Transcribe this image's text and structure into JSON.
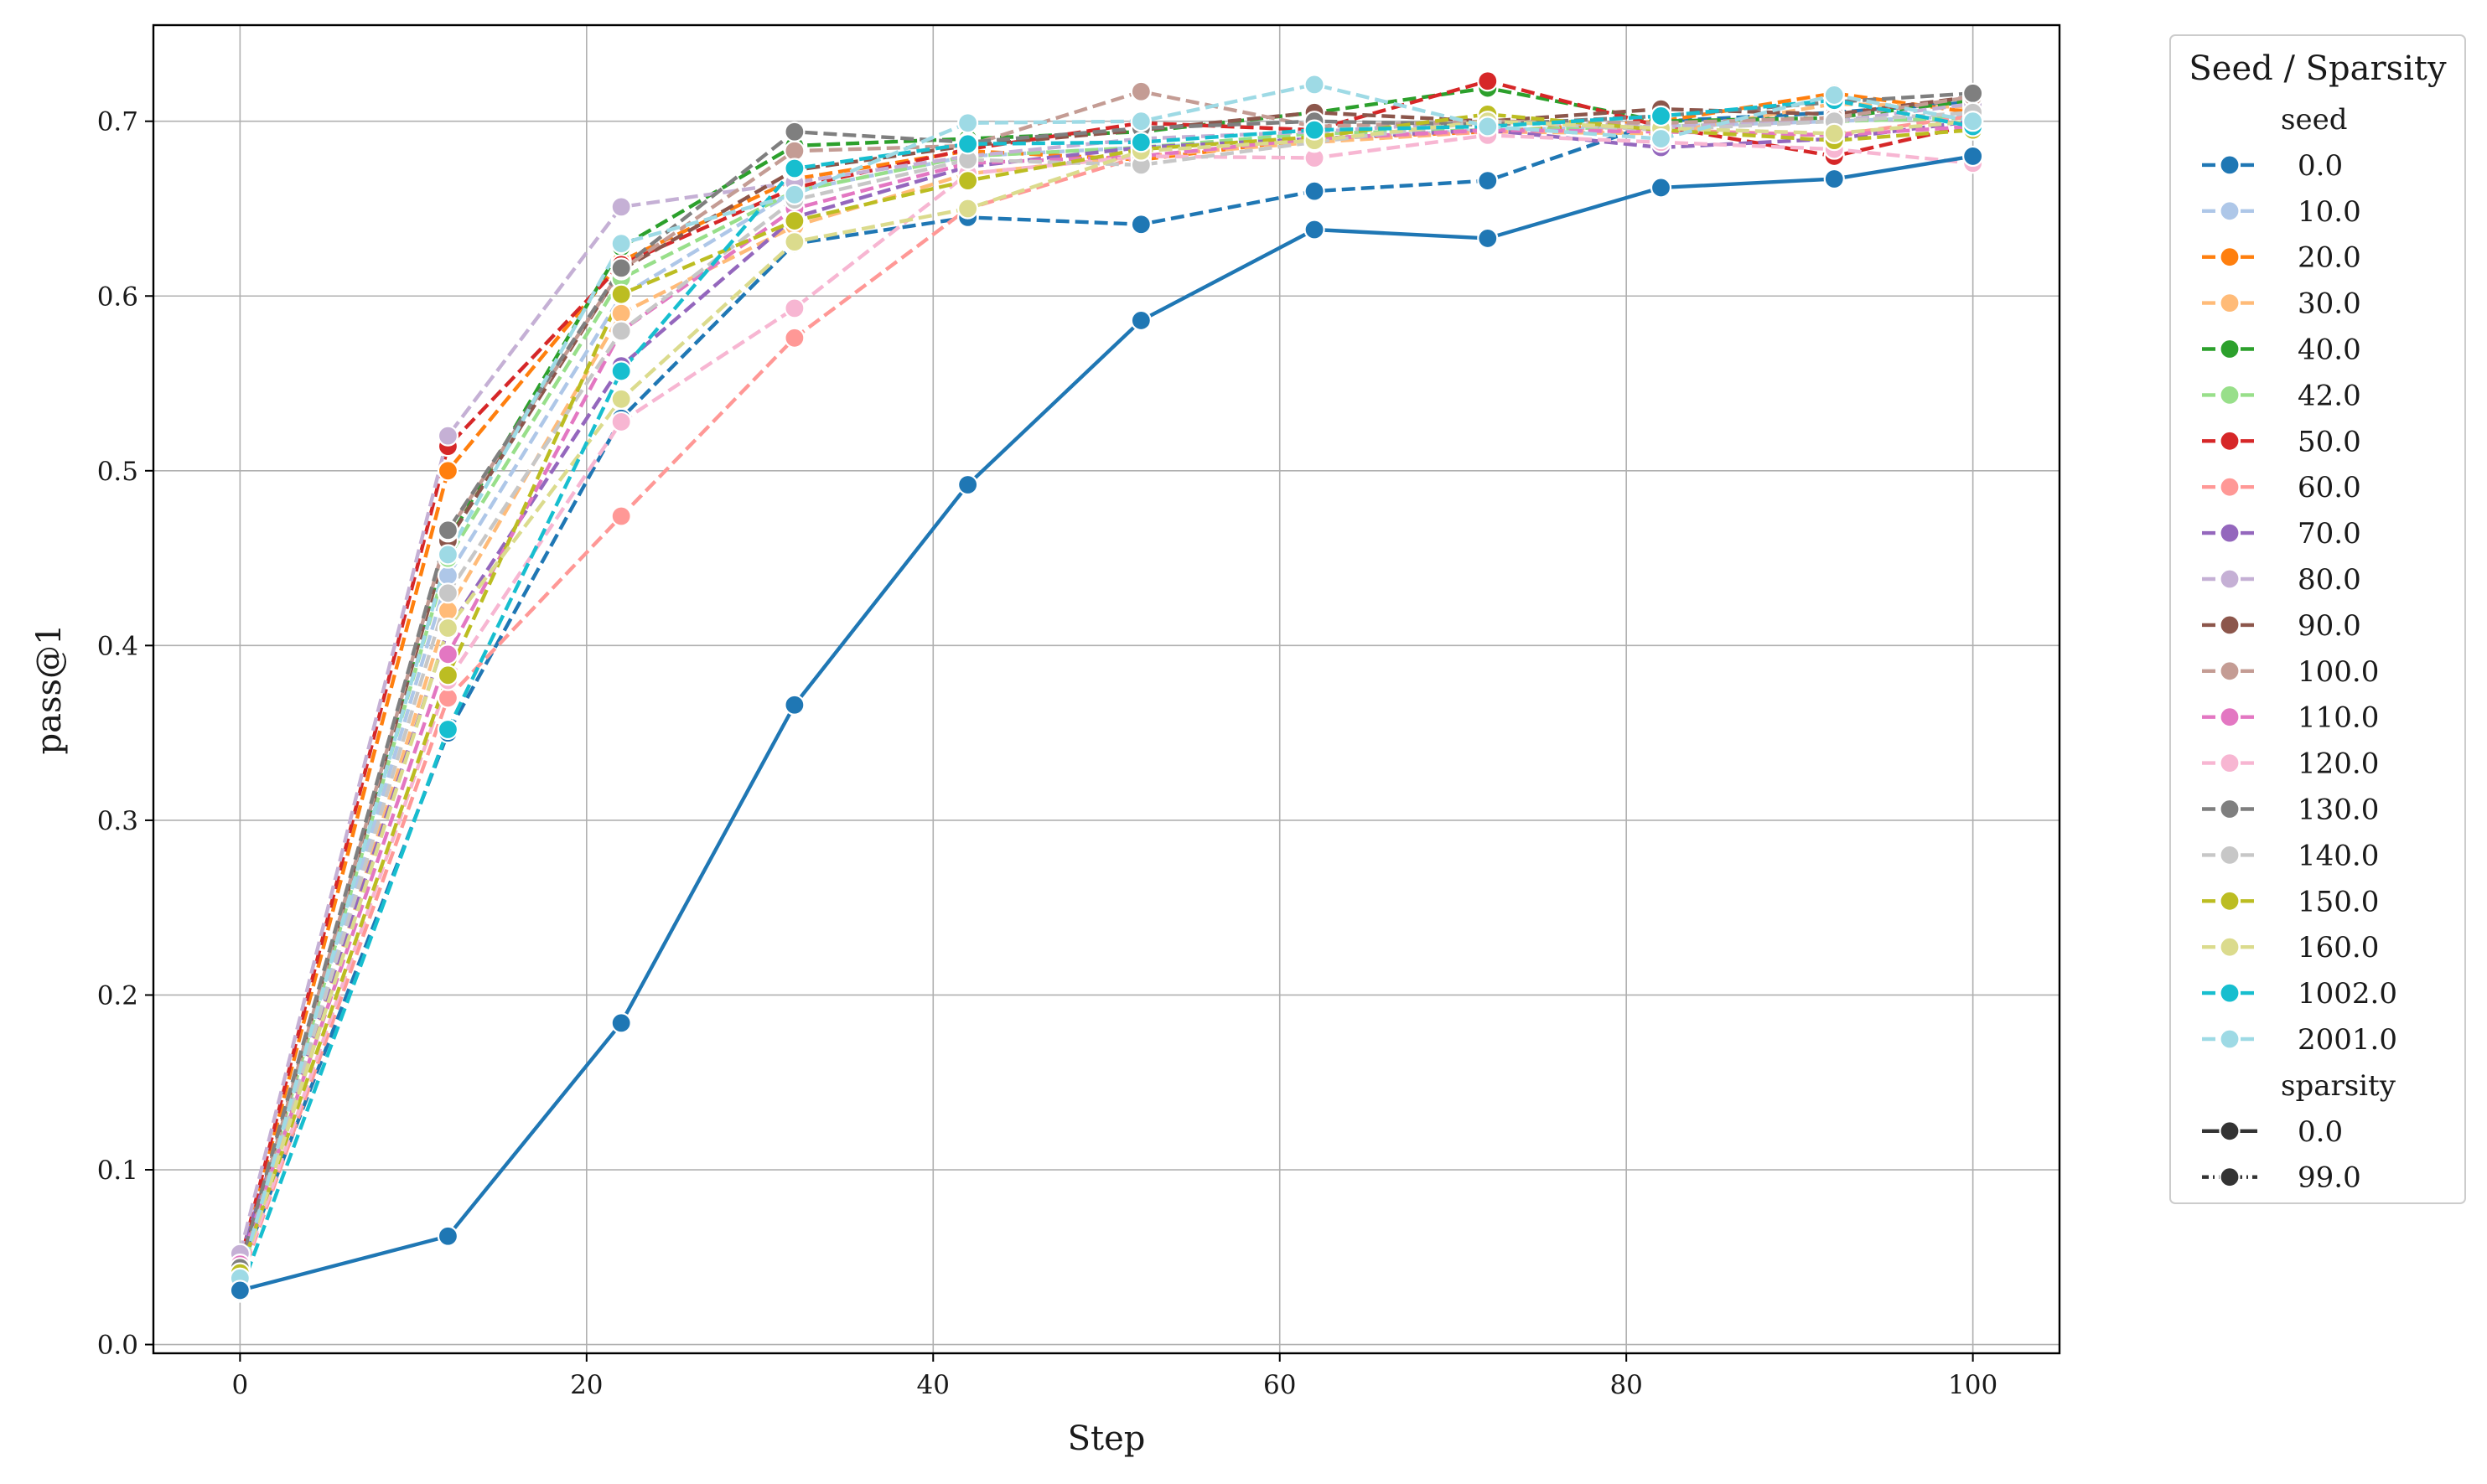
{
  "chart_data": {
    "type": "line",
    "xlabel": "Step",
    "ylabel": "pass@1",
    "xlim": [
      -5,
      105
    ],
    "ylim": [
      -0.005,
      0.755
    ],
    "xticks": [
      "0",
      "20",
      "40",
      "60",
      "80",
      "100"
    ],
    "yticks": [
      "0.0",
      "0.1",
      "0.2",
      "0.3",
      "0.4",
      "0.5",
      "0.6",
      "0.7"
    ],
    "grid": true,
    "legend": {
      "title": "Seed / Sparsity",
      "placement": "outside-right",
      "seed_header": "seed",
      "sparsity_header": "sparsity",
      "seeds": [
        "0.0",
        "10.0",
        "20.0",
        "30.0",
        "40.0",
        "42.0",
        "50.0",
        "60.0",
        "70.0",
        "80.0",
        "90.0",
        "100.0",
        "110.0",
        "120.0",
        "130.0",
        "140.0",
        "150.0",
        "160.0",
        "1002.0",
        "2001.0"
      ],
      "sparsities": [
        "0.0",
        "99.0"
      ]
    },
    "seed_colors": [
      "#1f77b4",
      "#aec7e8",
      "#ff7f0e",
      "#ffbb78",
      "#2ca02c",
      "#98df8a",
      "#d62728",
      "#ff9896",
      "#9467bd",
      "#c5b0d5",
      "#8c564b",
      "#c49c94",
      "#e377c2",
      "#f7b6d2",
      "#7f7f7f",
      "#c7c7c7",
      "#bcbd22",
      "#dbdb8d",
      "#17becf",
      "#9edae5"
    ],
    "x": [
      0,
      12,
      22,
      32,
      42,
      52,
      62,
      72,
      82,
      92,
      100
    ],
    "series": [
      {
        "seed": "0.0",
        "sparsity": "99.0",
        "values": [
          0.042,
          0.35,
          0.53,
          0.63,
          0.645,
          0.641,
          0.66,
          0.666,
          0.7,
          0.705,
          0.711
        ]
      },
      {
        "seed": "10.0",
        "sparsity": "99.0",
        "values": [
          0.039,
          0.44,
          0.6,
          0.66,
          0.68,
          0.685,
          0.69,
          0.695,
          0.697,
          0.7,
          0.703
        ]
      },
      {
        "seed": "20.0",
        "sparsity": "99.0",
        "values": [
          0.045,
          0.5,
          0.62,
          0.667,
          0.683,
          0.678,
          0.69,
          0.694,
          0.7,
          0.716,
          0.705
        ]
      },
      {
        "seed": "30.0",
        "sparsity": "99.0",
        "values": [
          0.038,
          0.42,
          0.59,
          0.64,
          0.67,
          0.68,
          0.688,
          0.694,
          0.693,
          0.71,
          0.708
        ]
      },
      {
        "seed": "40.0",
        "sparsity": "99.0",
        "values": [
          0.044,
          0.46,
          0.628,
          0.686,
          0.69,
          0.694,
          0.705,
          0.719,
          0.7,
          0.702,
          0.712
        ]
      },
      {
        "seed": "42.0",
        "sparsity": "99.0",
        "values": [
          0.041,
          0.45,
          0.61,
          0.66,
          0.68,
          0.685,
          0.693,
          0.695,
          0.697,
          0.7,
          0.702
        ]
      },
      {
        "seed": "50.0",
        "sparsity": "99.0",
        "values": [
          0.047,
          0.514,
          0.618,
          0.662,
          0.684,
          0.699,
          0.695,
          0.723,
          0.697,
          0.68,
          0.698
        ]
      },
      {
        "seed": "60.0",
        "sparsity": "99.0",
        "values": [
          0.036,
          0.37,
          0.474,
          0.576,
          0.65,
          0.68,
          0.69,
          0.694,
          0.695,
          0.692,
          0.703
        ]
      },
      {
        "seed": "70.0",
        "sparsity": "99.0",
        "values": [
          0.05,
          0.409,
          0.56,
          0.645,
          0.674,
          0.685,
          0.69,
          0.695,
          0.685,
          0.69,
          0.7
        ]
      },
      {
        "seed": "80.0",
        "sparsity": "99.0",
        "values": [
          0.052,
          0.52,
          0.651,
          0.665,
          0.68,
          0.69,
          0.694,
          0.7,
          0.697,
          0.7,
          0.71
        ]
      },
      {
        "seed": "90.0",
        "sparsity": "99.0",
        "values": [
          0.043,
          0.46,
          0.615,
          0.672,
          0.686,
          0.695,
          0.705,
          0.7,
          0.707,
          0.704,
          0.714
        ]
      },
      {
        "seed": "100.0",
        "sparsity": "99.0",
        "values": [
          0.04,
          0.465,
          0.615,
          0.683,
          0.686,
          0.717,
          0.697,
          0.7,
          0.699,
          0.702,
          0.714
        ]
      },
      {
        "seed": "110.0",
        "sparsity": "99.0",
        "values": [
          0.046,
          0.395,
          0.58,
          0.65,
          0.676,
          0.68,
          0.69,
          0.695,
          0.694,
          0.692,
          0.697
        ]
      },
      {
        "seed": "120.0",
        "sparsity": "99.0",
        "values": [
          0.037,
          0.38,
          0.528,
          0.593,
          0.67,
          0.68,
          0.679,
          0.692,
          0.688,
          0.684,
          0.676
        ]
      },
      {
        "seed": "130.0",
        "sparsity": "99.0",
        "values": [
          0.044,
          0.466,
          0.616,
          0.694,
          0.688,
          0.696,
          0.7,
          0.698,
          0.703,
          0.711,
          0.716
        ]
      },
      {
        "seed": "140.0",
        "sparsity": "99.0",
        "values": [
          0.039,
          0.43,
          0.58,
          0.655,
          0.678,
          0.675,
          0.688,
          0.7,
          0.695,
          0.7,
          0.705
        ]
      },
      {
        "seed": "150.0",
        "sparsity": "99.0",
        "values": [
          0.041,
          0.383,
          0.601,
          0.643,
          0.666,
          0.684,
          0.691,
          0.704,
          0.695,
          0.689,
          0.695
        ]
      },
      {
        "seed": "160.0",
        "sparsity": "99.0",
        "values": [
          0.038,
          0.41,
          0.541,
          0.631,
          0.65,
          0.683,
          0.689,
          0.7,
          0.696,
          0.693,
          0.7
        ]
      },
      {
        "seed": "1002.0",
        "sparsity": "99.0",
        "values": [
          0.03,
          0.352,
          0.557,
          0.673,
          0.687,
          0.688,
          0.695,
          0.697,
          0.703,
          0.712,
          0.697
        ]
      },
      {
        "seed": "2001.0",
        "sparsity": "99.0",
        "values": [
          0.038,
          0.452,
          0.63,
          0.658,
          0.699,
          0.7,
          0.721,
          0.697,
          0.69,
          0.715,
          0.7
        ]
      },
      {
        "seed": "0.0",
        "sparsity": "0.0",
        "values": [
          0.031,
          0.062,
          0.184,
          0.366,
          0.492,
          0.586,
          0.638,
          0.633,
          0.662,
          0.667,
          0.68
        ]
      }
    ]
  }
}
